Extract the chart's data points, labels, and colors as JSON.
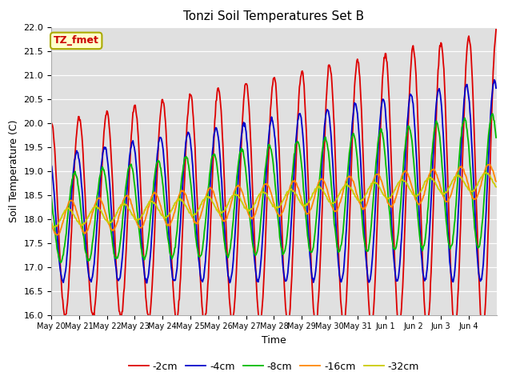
{
  "title": "Tonzi Soil Temperatures Set B",
  "xlabel": "Time",
  "ylabel": "Soil Temperature (C)",
  "ylim": [
    16.0,
    22.0
  ],
  "yticks": [
    16.0,
    16.5,
    17.0,
    17.5,
    18.0,
    18.5,
    19.0,
    19.5,
    20.0,
    20.5,
    21.0,
    21.5,
    22.0
  ],
  "legend_label": "TZ_fmet",
  "series_labels": [
    "-2cm",
    "-4cm",
    "-8cm",
    "-16cm",
    "-32cm"
  ],
  "series_colors": [
    "#dd0000",
    "#0000cc",
    "#00bb00",
    "#ff8800",
    "#cccc00"
  ],
  "background_color": "#e0e0e0",
  "figure_color": "#ffffff",
  "x_tick_labels": [
    "May 20",
    "May 21",
    "May 22",
    "May 23",
    "May 24",
    "May 25",
    "May 26",
    "May 27",
    "May 28",
    "May 29",
    "May 30",
    "May 31",
    "Jun 1",
    "Jun 2",
    "Jun 3",
    "Jun 4"
  ],
  "num_days": 16,
  "line_width": 1.3
}
